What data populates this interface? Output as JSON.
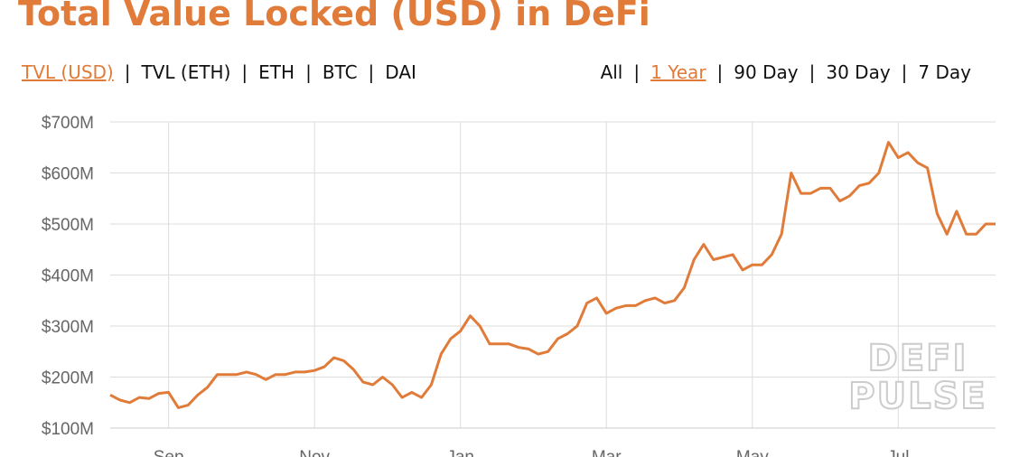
{
  "chart_data": {
    "type": "line",
    "title": "Total Value Locked (USD) in DeFi",
    "categories": [
      null,
      null,
      null,
      null,
      null,
      null,
      "Sep",
      null,
      null,
      null,
      null,
      null,
      null,
      null,
      null,
      null,
      null,
      null,
      null,
      null,
      null,
      "Nov",
      null,
      null,
      null,
      null,
      null,
      null,
      null,
      null,
      null,
      null,
      null,
      null,
      null,
      null,
      "Jan",
      null,
      null,
      null,
      null,
      null,
      null,
      null,
      null,
      null,
      null,
      null,
      null,
      null,
      null,
      "Mar",
      null,
      null,
      null,
      null,
      null,
      null,
      null,
      null,
      null,
      null,
      null,
      null,
      null,
      null,
      "May",
      null,
      null,
      null,
      null,
      null,
      null,
      null,
      null,
      null,
      null,
      null,
      null,
      null,
      null,
      "Jul",
      null,
      null,
      null,
      null,
      null,
      null,
      null,
      null,
      null,
      null
    ],
    "series": [
      {
        "name": "TVL (USD)",
        "color": "#e07b39",
        "values": [
          165,
          155,
          150,
          160,
          158,
          168,
          170,
          140,
          145,
          165,
          180,
          205,
          205,
          205,
          210,
          205,
          195,
          205,
          205,
          210,
          210,
          213,
          220,
          238,
          232,
          215,
          190,
          185,
          200,
          185,
          160,
          170,
          160,
          185,
          245,
          275,
          290,
          320,
          300,
          265,
          265,
          265,
          258,
          255,
          245,
          250,
          275,
          285,
          300,
          345,
          355,
          325,
          335,
          340,
          340,
          350,
          355,
          345,
          350,
          375,
          430,
          460,
          430,
          435,
          440,
          410,
          420,
          420,
          440,
          480,
          600,
          560,
          560,
          570,
          570,
          545,
          555,
          575,
          580,
          600,
          660,
          630,
          640,
          620,
          610,
          520,
          480,
          525,
          480,
          480,
          500,
          500
        ]
      }
    ],
    "ylim": [
      100,
      700
    ],
    "yticks": [
      {
        "value": 100,
        "label": "$100M"
      },
      {
        "value": 200,
        "label": "$200M"
      },
      {
        "value": 300,
        "label": "$300M"
      },
      {
        "value": 400,
        "label": "$400M"
      },
      {
        "value": 500,
        "label": "$500M"
      },
      {
        "value": 600,
        "label": "$600M"
      },
      {
        "value": 700,
        "label": "$700M"
      }
    ],
    "grid": true
  },
  "tabs": {
    "metric": [
      {
        "label": "TVL (USD)",
        "active": true
      },
      {
        "label": "TVL (ETH)",
        "active": false
      },
      {
        "label": "ETH",
        "active": false
      },
      {
        "label": "BTC",
        "active": false
      },
      {
        "label": "DAI",
        "active": false
      }
    ],
    "range": [
      {
        "label": "All",
        "active": false
      },
      {
        "label": "1 Year",
        "active": true
      },
      {
        "label": "90 Day",
        "active": false
      },
      {
        "label": "30 Day",
        "active": false
      },
      {
        "label": "7 Day",
        "active": false
      }
    ]
  },
  "watermark": [
    "DEFI",
    "PULSE"
  ]
}
